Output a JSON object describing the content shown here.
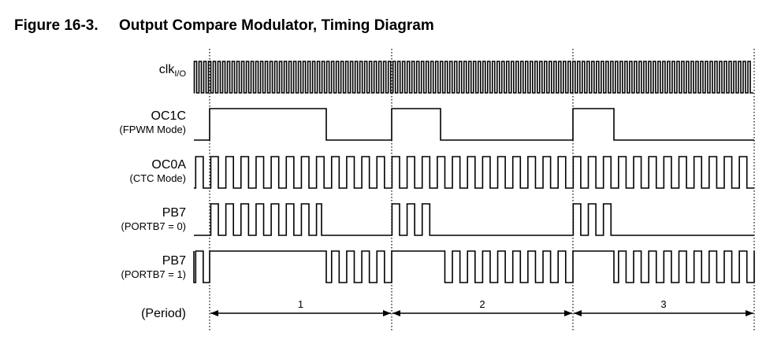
{
  "figure": {
    "number": "Figure 16-3.",
    "title": "Output Compare Modulator, Timing Diagram"
  },
  "signals": {
    "clk": {
      "name": "clk",
      "subscript": "I/O"
    },
    "oc1c": {
      "name": "OC1C",
      "sub": "(FPWM Mode)"
    },
    "oc0a": {
      "name": "OC0A",
      "sub": "(CTC Mode)"
    },
    "pb7_0": {
      "name": "PB7",
      "sub": "(PORTB7 = 0)"
    },
    "pb7_1": {
      "name": "PB7",
      "sub": "(PORTB7 = 1)"
    }
  },
  "period": {
    "label": "(Period)",
    "numbers": [
      "1",
      "2",
      "3"
    ]
  },
  "colors": {
    "line": "#000000",
    "dotted": "#000000"
  }
}
